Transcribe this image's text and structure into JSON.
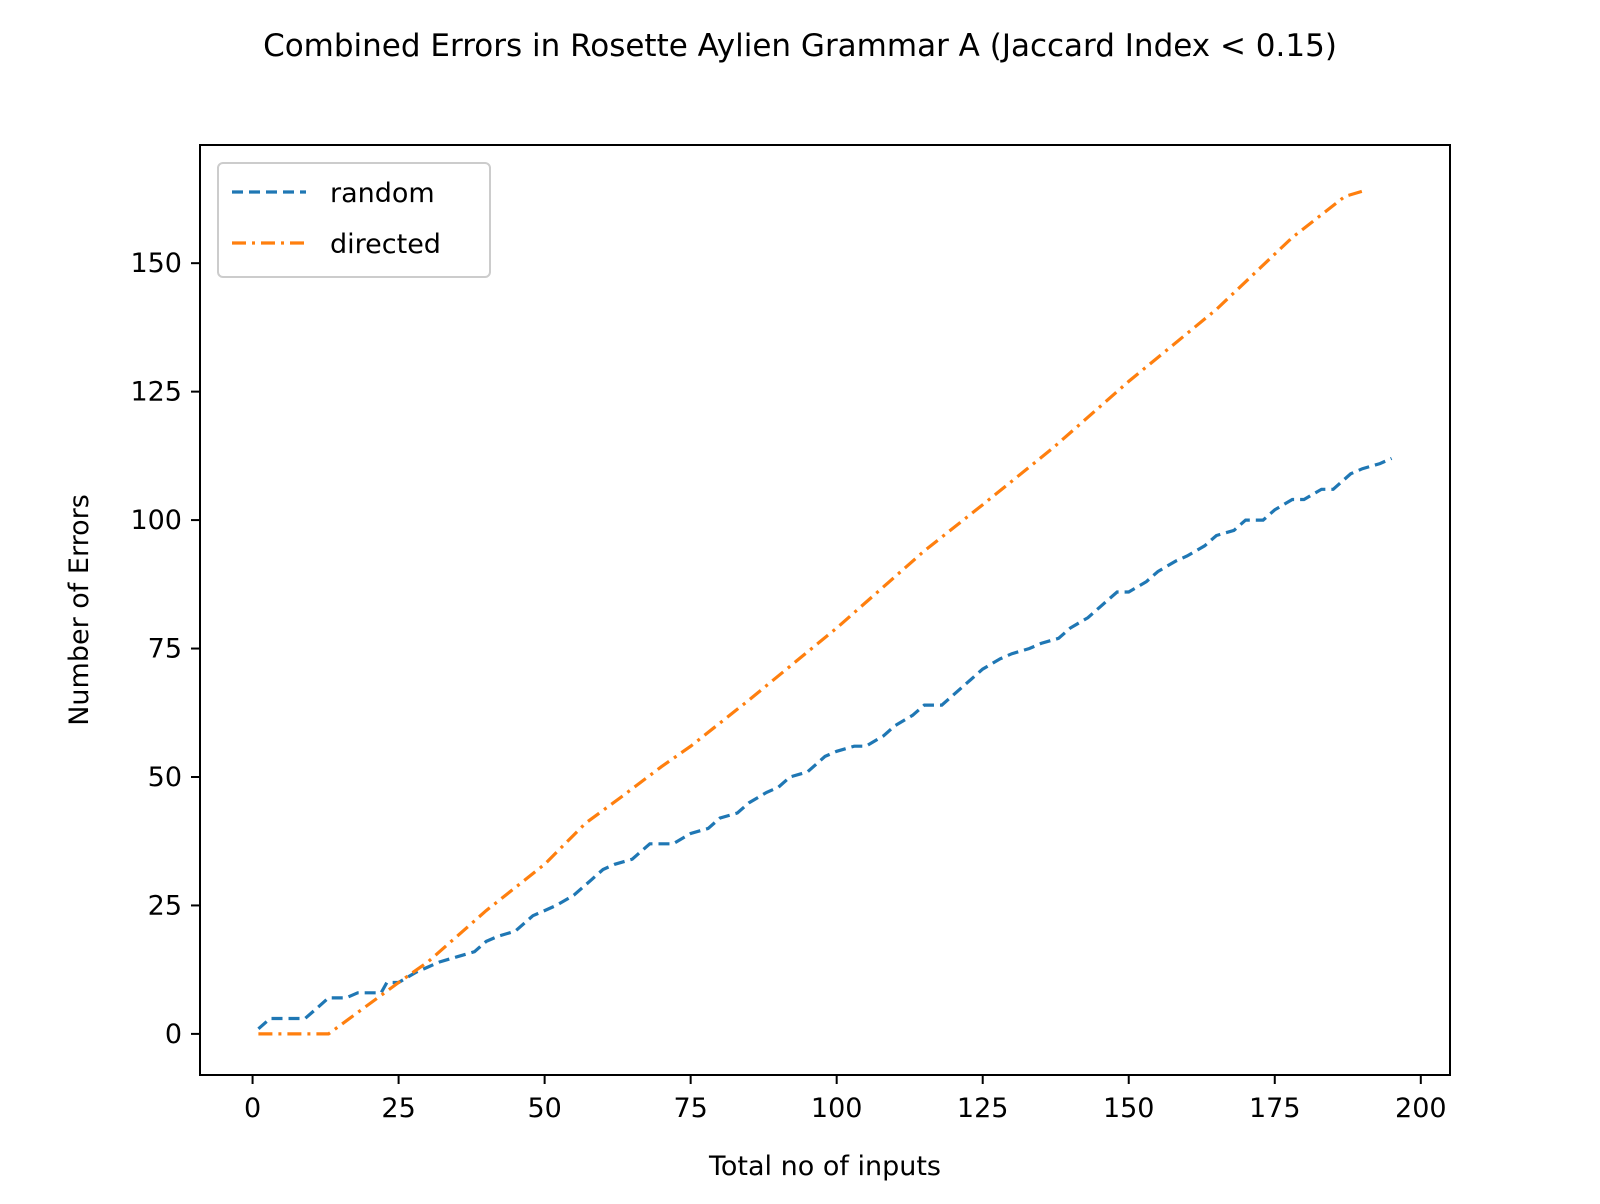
{
  "chart_data": {
    "type": "line",
    "title": "Combined Errors in Rosette Aylien Grammar A (Jaccard Index < 0.15)",
    "xlabel": "Total no of inputs",
    "ylabel": "Number of Errors",
    "xlim": [
      -9,
      205
    ],
    "ylim": [
      -8,
      173
    ],
    "xticks": [
      0,
      25,
      50,
      75,
      100,
      125,
      150,
      175,
      200
    ],
    "yticks": [
      0,
      25,
      50,
      75,
      100,
      125,
      150
    ],
    "grid": false,
    "legend": {
      "placement": "top-left",
      "entries": [
        "random",
        "directed"
      ]
    },
    "series": [
      {
        "name": "random",
        "color": "#1f77b4",
        "linestyle": "dashed",
        "points": [
          [
            1,
            1
          ],
          [
            3,
            3
          ],
          [
            9,
            3
          ],
          [
            12,
            6
          ],
          [
            13,
            7
          ],
          [
            16,
            7
          ],
          [
            18,
            8
          ],
          [
            22,
            8
          ],
          [
            23,
            10
          ],
          [
            25,
            10
          ],
          [
            28,
            12
          ],
          [
            30,
            13
          ],
          [
            32,
            14
          ],
          [
            35,
            15
          ],
          [
            38,
            16
          ],
          [
            40,
            18
          ],
          [
            42,
            19
          ],
          [
            45,
            20
          ],
          [
            48,
            23
          ],
          [
            50,
            24
          ],
          [
            52,
            25
          ],
          [
            55,
            27
          ],
          [
            58,
            30
          ],
          [
            60,
            32
          ],
          [
            62,
            33
          ],
          [
            65,
            34
          ],
          [
            68,
            37
          ],
          [
            72,
            37
          ],
          [
            75,
            39
          ],
          [
            78,
            40
          ],
          [
            80,
            42
          ],
          [
            83,
            43
          ],
          [
            85,
            45
          ],
          [
            88,
            47
          ],
          [
            90,
            48
          ],
          [
            92,
            50
          ],
          [
            95,
            51
          ],
          [
            98,
            54
          ],
          [
            100,
            55
          ],
          [
            103,
            56
          ],
          [
            105,
            56
          ],
          [
            108,
            58
          ],
          [
            110,
            60
          ],
          [
            113,
            62
          ],
          [
            115,
            64
          ],
          [
            118,
            64
          ],
          [
            120,
            66
          ],
          [
            123,
            69
          ],
          [
            125,
            71
          ],
          [
            128,
            73
          ],
          [
            130,
            74
          ],
          [
            133,
            75
          ],
          [
            135,
            76
          ],
          [
            138,
            77
          ],
          [
            140,
            79
          ],
          [
            143,
            81
          ],
          [
            145,
            83
          ],
          [
            148,
            86
          ],
          [
            150,
            86
          ],
          [
            153,
            88
          ],
          [
            155,
            90
          ],
          [
            158,
            92
          ],
          [
            160,
            93
          ],
          [
            163,
            95
          ],
          [
            165,
            97
          ],
          [
            168,
            98
          ],
          [
            170,
            100
          ],
          [
            173,
            100
          ],
          [
            175,
            102
          ],
          [
            178,
            104
          ],
          [
            180,
            104
          ],
          [
            183,
            106
          ],
          [
            185,
            106
          ],
          [
            188,
            109
          ],
          [
            190,
            110
          ],
          [
            193,
            111
          ],
          [
            195,
            112
          ]
        ]
      },
      {
        "name": "directed",
        "color": "#ff7f0e",
        "linestyle": "dashdot",
        "points": [
          [
            1,
            0
          ],
          [
            13,
            0
          ],
          [
            25,
            10
          ],
          [
            30,
            14
          ],
          [
            40,
            24
          ],
          [
            50,
            33
          ],
          [
            57,
            41
          ],
          [
            63,
            46
          ],
          [
            70,
            52
          ],
          [
            75,
            56
          ],
          [
            85,
            65
          ],
          [
            100,
            79
          ],
          [
            115,
            94
          ],
          [
            125,
            103
          ],
          [
            137,
            114
          ],
          [
            150,
            127
          ],
          [
            165,
            141
          ],
          [
            178,
            155
          ],
          [
            187,
            163
          ],
          [
            190,
            164
          ]
        ]
      }
    ]
  }
}
